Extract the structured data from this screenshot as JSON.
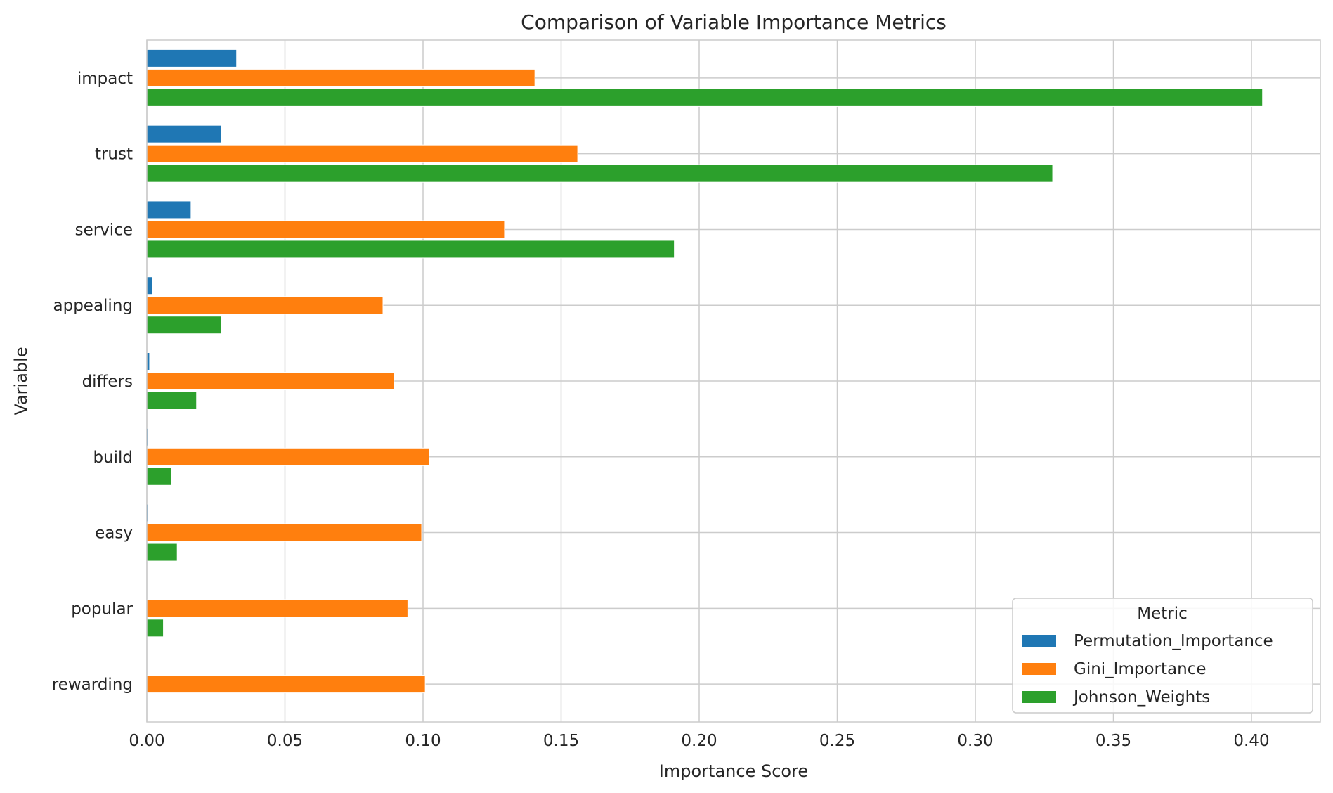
{
  "chart_data": {
    "type": "bar",
    "orientation": "horizontal",
    "title": "Comparison of Variable Importance Metrics",
    "xlabel": "Importance Score",
    "ylabel": "Variable",
    "xlim": [
      0,
      0.425
    ],
    "xticks": [
      "0.00",
      "0.05",
      "0.10",
      "0.15",
      "0.20",
      "0.25",
      "0.30",
      "0.35",
      "0.40"
    ],
    "grid": true,
    "legend_title": "Metric",
    "legend_position": "bottom-right",
    "categories": [
      "impact",
      "trust",
      "service",
      "appealing",
      "differs",
      "build",
      "easy",
      "popular",
      "rewarding"
    ],
    "series": [
      {
        "name": "Permutation_Importance",
        "color": "#1f77b4",
        "values": [
          0.0325,
          0.027,
          0.016,
          0.002,
          0.001,
          0.0005,
          0.0005,
          0.0,
          0.0
        ]
      },
      {
        "name": "Gini_Importance",
        "color": "#ff7f0e",
        "values": [
          0.1405,
          0.156,
          0.1295,
          0.0855,
          0.0895,
          0.1022,
          0.0995,
          0.0945,
          0.1008
        ]
      },
      {
        "name": "Johnson_Weights",
        "color": "#2ca02c",
        "values": [
          0.404,
          0.328,
          0.191,
          0.027,
          0.018,
          0.009,
          0.011,
          0.006,
          0.0
        ]
      }
    ]
  }
}
